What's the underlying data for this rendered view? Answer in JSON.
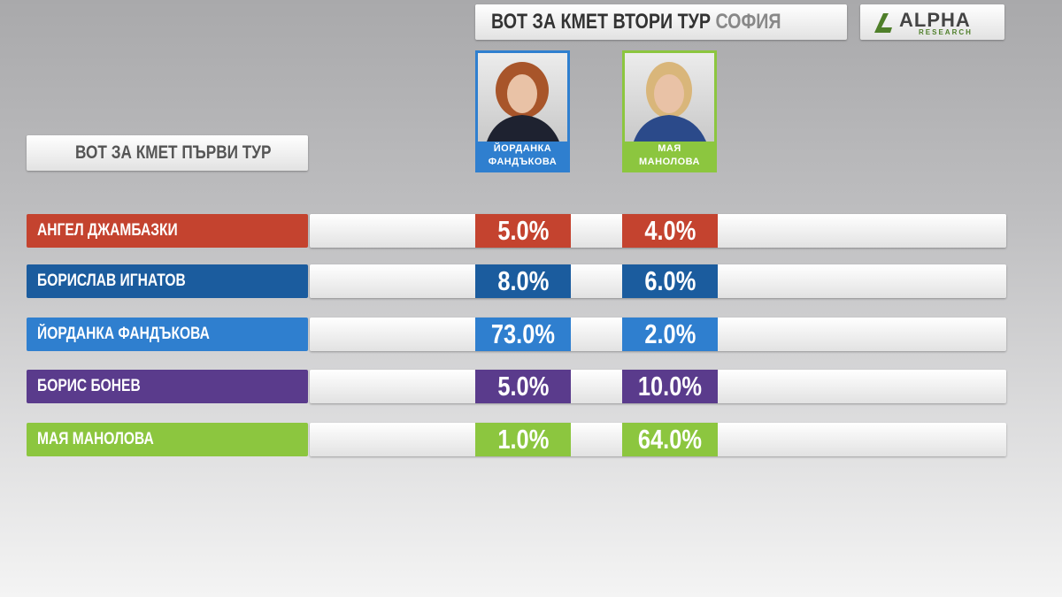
{
  "header": {
    "title": "ВОТ ЗА КМЕТ ВТОРИ ТУР",
    "city": "СОФИЯ"
  },
  "logo": {
    "name": "ALPHA",
    "sub": "RESEARCH"
  },
  "section_label": "ВОТ ЗА КМЕТ ПЪРВИ ТУР",
  "candidates": [
    {
      "name_lines": [
        "ЙОРДАНКА",
        "ФАНДЪКОВА"
      ],
      "color": "#2f7fcf"
    },
    {
      "name_lines": [
        "МАЯ",
        "МАНОЛОВА"
      ],
      "color": "#8cc63f"
    }
  ],
  "rows": [
    {
      "name": "АНГЕЛ ДЖАМБАЗКИ",
      "color": "#c4432f",
      "values": [
        "5.0%",
        "4.0%"
      ]
    },
    {
      "name": "БОРИСЛАВ ИГНАТОВ",
      "color": "#1b5c9e",
      "values": [
        "8.0%",
        "6.0%"
      ]
    },
    {
      "name": "ЙОРДАНКА ФАНДЪКОВА",
      "color": "#2f7fcf",
      "values": [
        "73.0%",
        "2.0%"
      ]
    },
    {
      "name": "БОРИС БОНЕВ",
      "color": "#5a3b8c",
      "values": [
        "5.0%",
        "10.0%"
      ]
    },
    {
      "name": "МАЯ МАНОЛОВА",
      "color": "#8cc63f",
      "values": [
        "1.0%",
        "64.0%"
      ]
    }
  ]
}
